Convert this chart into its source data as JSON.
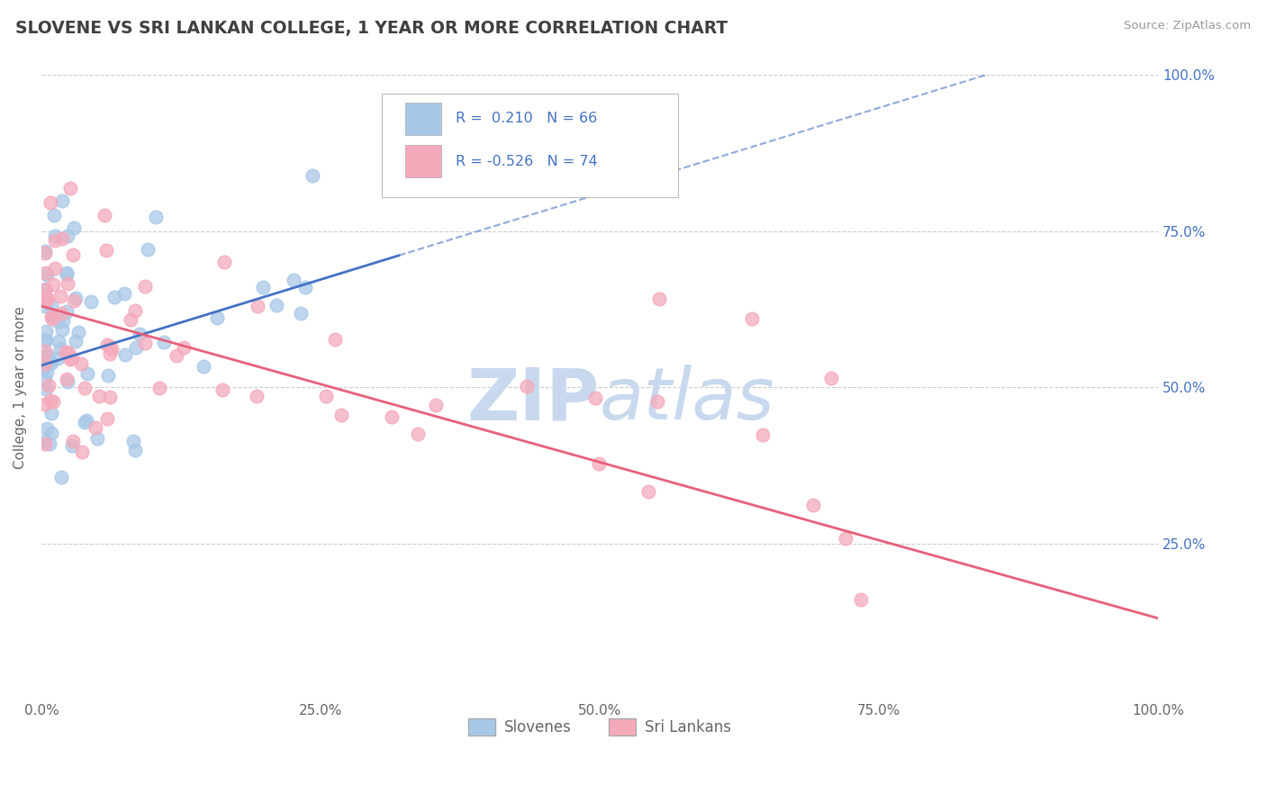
{
  "title": "SLOVENE VS SRI LANKAN COLLEGE, 1 YEAR OR MORE CORRELATION CHART",
  "source_text": "Source: ZipAtlas.com",
  "ylabel": "College, 1 year or more",
  "legend_labels": [
    "Slovenes",
    "Sri Lankans"
  ],
  "R_slovene": 0.21,
  "R_srilankan": -0.526,
  "N_slovene": 66,
  "N_srilankan": 74,
  "xlim": [
    0.0,
    1.0
  ],
  "ylim": [
    0.0,
    1.0
  ],
  "xticks": [
    0.0,
    0.25,
    0.5,
    0.75,
    1.0
  ],
  "yticks": [
    0.25,
    0.5,
    0.75,
    1.0
  ],
  "xticklabels": [
    "0.0%",
    "25.0%",
    "50.0%",
    "75.0%",
    "100.0%"
  ],
  "yticklabels_right": [
    "25.0%",
    "50.0%",
    "75.0%",
    "100.0%"
  ],
  "scatter_color_slovene": "#A8C8E8",
  "scatter_color_srilankan": "#F4AABB",
  "line_color_slovene": "#4472C4",
  "line_color_srilankan": "#E8607A",
  "background_color": "#FFFFFF",
  "watermark_color": "#C8D8EE",
  "title_color": "#404040",
  "tick_color": "#4472C4",
  "axis_color": "#AAAAAA",
  "grid_color": "#CCCCCC",
  "slope_slovene": 0.55,
  "intercept_slovene": 0.535,
  "slope_srilankan": -0.5,
  "intercept_srilankan": 0.63
}
